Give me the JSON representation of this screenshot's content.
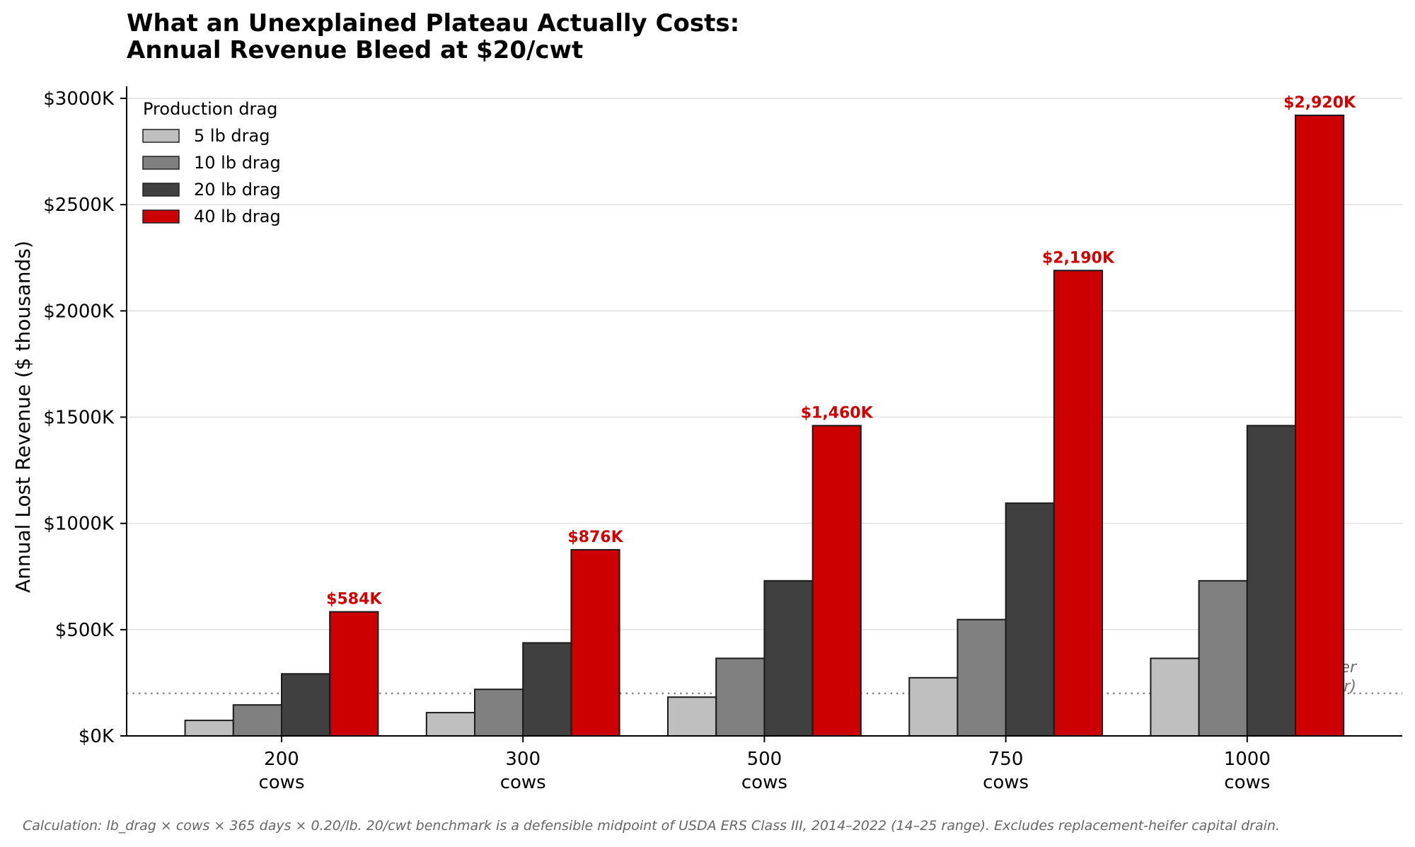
{
  "chart_data": {
    "type": "bar",
    "title_lines": [
      "What an Unexplained Plateau Actually Costs:",
      "Annual Revenue Bleed at $20/cwt"
    ],
    "xlabel": "",
    "ylabel": "Annual Lost Revenue ($ thousands)",
    "categories": [
      "200\ncows",
      "300\ncows",
      "500\ncows",
      "750\ncows",
      "1000\ncows"
    ],
    "category_lines": [
      [
        "200",
        "cows"
      ],
      [
        "300",
        "cows"
      ],
      [
        "500",
        "cows"
      ],
      [
        "750",
        "cows"
      ],
      [
        "1000",
        "cows"
      ]
    ],
    "ylim": [
      0,
      3060
    ],
    "yticks": [
      0,
      500,
      1000,
      1500,
      2000,
      2500,
      3000
    ],
    "ytick_labels": [
      "$0K",
      "$500K",
      "$1000K",
      "$1500K",
      "$2000K",
      "$2500K",
      "$3000K"
    ],
    "grid": "y",
    "legend": {
      "title": "Production drag",
      "placement": "top-left"
    },
    "series": [
      {
        "name": "5 lb drag",
        "color": "#bfbfbf",
        "values": [
          73,
          109.5,
          182.5,
          273.75,
          365
        ]
      },
      {
        "name": "10 lb drag",
        "color": "#808080",
        "values": [
          146,
          219,
          365,
          547.5,
          730
        ]
      },
      {
        "name": "20 lb drag",
        "color": "#404040",
        "values": [
          292,
          438,
          730,
          1095,
          1460
        ]
      },
      {
        "name": "40 lb drag",
        "color": "#cc0000",
        "values": [
          584,
          876,
          1460,
          2190,
          2920
        ]
      }
    ],
    "data_labels": {
      "series": "40 lb drag",
      "labels": [
        "$584K",
        "$876K",
        "$1,460K",
        "$2,190K",
        "$2,920K"
      ],
      "color": "#cc0000"
    },
    "reference_line": {
      "value": 200,
      "style": "dotted",
      "color": "#888888",
      "label_lines": [
        "Margin-eraser",
        "threshold (~$200K/yr)"
      ]
    },
    "footnote": "Calculation: lb_drag × cows × 365 days × 0.20/lb. 20/cwt benchmark is a defensible midpoint of USDA ERS Class III, 2014–2022 (14–25 range). Excludes replacement-heifer capital drain."
  }
}
